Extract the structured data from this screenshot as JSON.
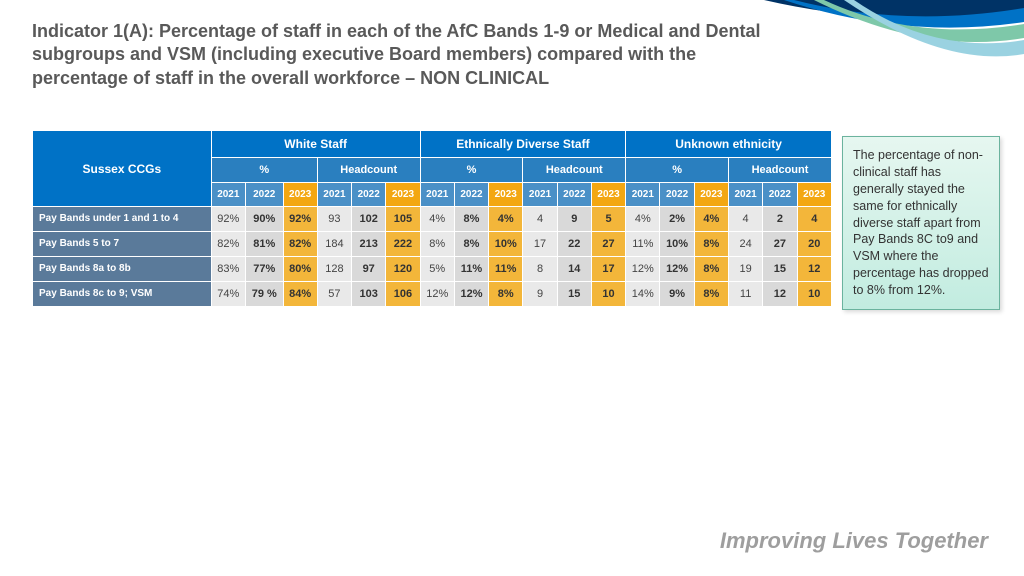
{
  "title": "Indicator 1(A): Percentage of staff in each of the AfC Bands 1-9 or Medical and Dental subgroups and VSM (including executive Board members) compared with the percentage of staff in the overall workforce – NON CLINICAL",
  "tagline": "Improving Lives Together",
  "sidebar_note": "The percentage of non-clinical staff has generally stayed the same for ethnically diverse staff apart from Pay Bands 8C to9 and VSM where the percentage has dropped to 8% from 12%.",
  "table": {
    "corner_label": "Sussex CCGs",
    "groups": [
      "White Staff",
      "Ethnically Diverse Staff",
      "Unknown ethnicity"
    ],
    "subgroups": [
      "%",
      "Headcount"
    ],
    "years": [
      "2021",
      "2022",
      "2023"
    ],
    "highlight_year": "2023",
    "rows": [
      {
        "label": "Pay Bands under 1 and 1 to 4",
        "cells": [
          "92%",
          "90%",
          "92%",
          "93",
          "102",
          "105",
          "4%",
          "8%",
          "4%",
          "4",
          "9",
          "5",
          "4%",
          "2%",
          "4%",
          "4",
          "2",
          "4"
        ]
      },
      {
        "label": "Pay Bands 5 to 7",
        "cells": [
          "82%",
          "81%",
          "82%",
          "184",
          "213",
          "222",
          "8%",
          "8%",
          "10%",
          "17",
          "22",
          "27",
          "11%",
          "10%",
          "8%",
          "24",
          "27",
          "20"
        ]
      },
      {
        "label": "Pay Bands 8a to 8b",
        "cells": [
          "83%",
          "77%",
          "80%",
          "128",
          "97",
          "120",
          "5%",
          "11%",
          "11%",
          "8",
          "14",
          "17",
          "12%",
          "12%",
          "8%",
          "19",
          "15",
          "12"
        ]
      },
      {
        "label": "Pay Bands 8c to 9; VSM",
        "cells": [
          "74%",
          "79 %",
          "84%",
          "57",
          "103",
          "106",
          "12%",
          "12%",
          "8%",
          "9",
          "15",
          "10",
          "14%",
          "9%",
          "8%",
          "11",
          "12",
          "10"
        ]
      }
    ]
  },
  "styling": {
    "colors": {
      "title_text": "#595959",
      "main_head_bg": "#0072c6",
      "sub_head_bg": "#2a7fbf",
      "year_head_bg": "#4a90c7",
      "year_2023_bg": "#f3a712",
      "row_head_bg": "#5a7a9a",
      "cell_2021_bg": "#e9e9e9",
      "cell_2022_bg": "#d9d9d9",
      "cell_2023_bg": "#f3b63a",
      "sidebar_border": "#6bb39e",
      "sidebar_bg_top": "#e6f7f0",
      "sidebar_bg_bottom": "#c2ece0",
      "tagline_color": "#9e9e9e",
      "swoosh_colors": [
        "#003366",
        "#0072c6",
        "#7ec8a9",
        "#9ad2e1"
      ]
    },
    "fonts": {
      "title_size_pt": 14,
      "cell_size_pt": 8,
      "tagline_size_pt": 17
    }
  }
}
